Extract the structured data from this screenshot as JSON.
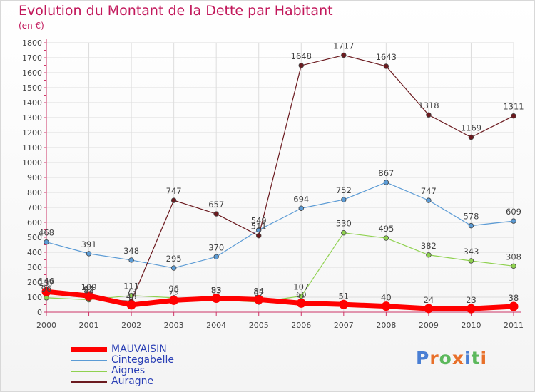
{
  "chart_data": {
    "type": "line",
    "title": "Evolution du Montant de la Dette par Habitant",
    "subtitle": "(en €)",
    "categories": [
      "2000",
      "2001",
      "2002",
      "2003",
      "2004",
      "2005",
      "2006",
      "2007",
      "2008",
      "2009",
      "2010",
      "2011"
    ],
    "ylim": [
      0,
      1800
    ],
    "yticks": [
      0,
      100,
      200,
      300,
      400,
      500,
      600,
      700,
      800,
      900,
      1000,
      1100,
      1200,
      1300,
      1400,
      1500,
      1600,
      1700,
      1800
    ],
    "grid": true,
    "legend_position": "bottom-left",
    "series": [
      {
        "name": "MAUVAISIN",
        "color": "#ff0000",
        "values": [
          137,
          109,
          48,
          79,
          93,
          84,
          60,
          51,
          40,
          24,
          23,
          38
        ]
      },
      {
        "name": "Cintegabelle",
        "color": "#5b9bd5",
        "values": [
          468,
          391,
          348,
          295,
          370,
          549,
          694,
          752,
          867,
          747,
          578,
          609
        ]
      },
      {
        "name": "Aignes",
        "color": "#8fd14f",
        "values": [
          96,
          83,
          111,
          96,
          83,
          67,
          107,
          530,
          495,
          382,
          343,
          308
        ]
      },
      {
        "name": "Auragne",
        "color": "#6b1a1f",
        "values": [
          146,
          92,
          73,
          747,
          657,
          511,
          1648,
          1717,
          1643,
          1318,
          1169,
          1311
        ]
      }
    ]
  },
  "logo": {
    "text": "Proxiti"
  }
}
